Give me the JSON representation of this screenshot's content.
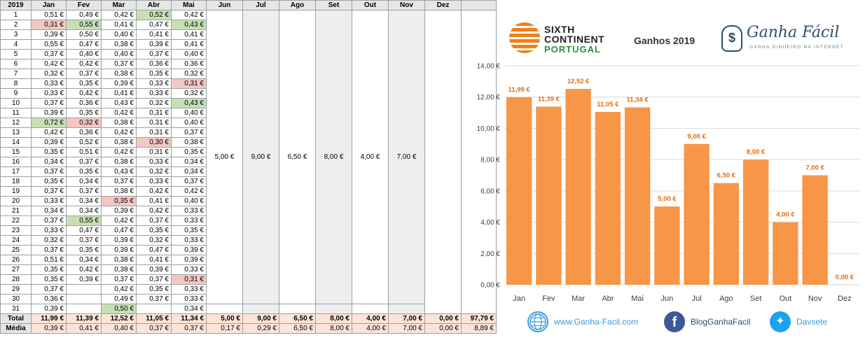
{
  "sheet": {
    "header": [
      "2019",
      "Jan",
      "Fev",
      "Mar",
      "Abr",
      "Mai",
      "Jun",
      "Jul",
      "Ago",
      "Set",
      "Out",
      "Nov",
      "Dez"
    ],
    "days": [
      {
        "day": "1",
        "vals": [
          "0,51 €",
          "0,49 €",
          "0,42 €",
          "0,52 €",
          "0,42 €"
        ],
        "hl": [
          "",
          "",
          "",
          "g",
          ""
        ]
      },
      {
        "day": "2",
        "vals": [
          "0,31 €",
          "0,55 €",
          "0,41 €",
          "0,47 €",
          "0,43 €"
        ],
        "hl": [
          "r",
          "g",
          "",
          "",
          "g"
        ]
      },
      {
        "day": "3",
        "vals": [
          "0,39 €",
          "0,50 €",
          "0,40 €",
          "0,41 €",
          "0,41 €"
        ],
        "hl": [
          "",
          "",
          "",
          "",
          ""
        ]
      },
      {
        "day": "4",
        "vals": [
          "0,55 €",
          "0,47 €",
          "0,38 €",
          "0,39 €",
          "0,41 €"
        ],
        "hl": [
          "",
          "",
          "",
          "",
          ""
        ]
      },
      {
        "day": "5",
        "vals": [
          "0,37 €",
          "0,40 €",
          "0,40 €",
          "0,37 €",
          "0,40 €"
        ],
        "hl": [
          "",
          "",
          "",
          "",
          ""
        ]
      },
      {
        "day": "6",
        "vals": [
          "0,42 €",
          "0,42 €",
          "0,37 €",
          "0,36 €",
          "0,36 €"
        ],
        "hl": [
          "",
          "",
          "",
          "",
          ""
        ]
      },
      {
        "day": "7",
        "vals": [
          "0,32 €",
          "0,37 €",
          "0,38 €",
          "0,35 €",
          "0,32 €"
        ],
        "hl": [
          "",
          "",
          "",
          "",
          ""
        ]
      },
      {
        "day": "8",
        "vals": [
          "0,33 €",
          "0,35 €",
          "0,39 €",
          "0,33 €",
          "0,31 €"
        ],
        "hl": [
          "",
          "",
          "",
          "",
          "r"
        ]
      },
      {
        "day": "9",
        "vals": [
          "0,33 €",
          "0,42 €",
          "0,41 €",
          "0,33 €",
          "0,32 €"
        ],
        "hl": [
          "",
          "",
          "",
          "",
          ""
        ]
      },
      {
        "day": "10",
        "vals": [
          "0,37 €",
          "0,36 €",
          "0,43 €",
          "0,32 €",
          "0,43 €"
        ],
        "hl": [
          "",
          "",
          "",
          "",
          "g"
        ]
      },
      {
        "day": "11",
        "vals": [
          "0,39 €",
          "0,35 €",
          "0,42 €",
          "0,31 €",
          "0,40 €"
        ],
        "hl": [
          "",
          "",
          "",
          "",
          ""
        ]
      },
      {
        "day": "12",
        "vals": [
          "0,72 €",
          "0,32 €",
          "0,38 €",
          "0,31 €",
          "0,40 €"
        ],
        "hl": [
          "g",
          "r",
          "",
          "",
          ""
        ]
      },
      {
        "day": "13",
        "vals": [
          "0,42 €",
          "0,36 €",
          "0,42 €",
          "0,31 €",
          "0,37 €"
        ],
        "hl": [
          "",
          "",
          "",
          "",
          ""
        ]
      },
      {
        "day": "14",
        "vals": [
          "0,39 €",
          "0,52 €",
          "0,38 €",
          "0,30 €",
          "0,38 €"
        ],
        "hl": [
          "",
          "",
          "",
          "r",
          ""
        ]
      },
      {
        "day": "15",
        "vals": [
          "0,35 €",
          "0,51 €",
          "0,42 €",
          "0,31 €",
          "0,35 €"
        ],
        "hl": [
          "",
          "",
          "",
          "",
          ""
        ]
      },
      {
        "day": "16",
        "vals": [
          "0,34 €",
          "0,37 €",
          "0,38 €",
          "0,33 €",
          "0,34 €"
        ],
        "hl": [
          "",
          "",
          "",
          "",
          ""
        ]
      },
      {
        "day": "17",
        "vals": [
          "0,37 €",
          "0,35 €",
          "0,43 €",
          "0,32 €",
          "0,34 €"
        ],
        "hl": [
          "",
          "",
          "",
          "",
          ""
        ]
      },
      {
        "day": "18",
        "vals": [
          "0,35 €",
          "0,34 €",
          "0,37 €",
          "0,33 €",
          "0,37 €"
        ],
        "hl": [
          "",
          "",
          "",
          "",
          ""
        ]
      },
      {
        "day": "19",
        "vals": [
          "0,37 €",
          "0,37 €",
          "0,38 €",
          "0,42 €",
          "0,42 €"
        ],
        "hl": [
          "",
          "",
          "",
          "",
          ""
        ]
      },
      {
        "day": "20",
        "vals": [
          "0,33 €",
          "0,34 €",
          "0,35 €",
          "0,41 €",
          "0,40 €"
        ],
        "hl": [
          "",
          "",
          "r",
          "",
          ""
        ]
      },
      {
        "day": "21",
        "vals": [
          "0,34 €",
          "0,34 €",
          "0,39 €",
          "0,42 €",
          "0,33 €"
        ],
        "hl": [
          "",
          "",
          "",
          "",
          ""
        ]
      },
      {
        "day": "22",
        "vals": [
          "0,37 €",
          "0,55 €",
          "0,42 €",
          "0,37 €",
          "0,33 €"
        ],
        "hl": [
          "",
          "g",
          "",
          "",
          ""
        ]
      },
      {
        "day": "23",
        "vals": [
          "0,33 €",
          "0,47 €",
          "0,47 €",
          "0,35 €",
          "0,35 €"
        ],
        "hl": [
          "",
          "",
          "",
          "",
          ""
        ]
      },
      {
        "day": "24",
        "vals": [
          "0,32 €",
          "0,37 €",
          "0,39 €",
          "0,32 €",
          "0,33 €"
        ],
        "hl": [
          "",
          "",
          "",
          "",
          ""
        ]
      },
      {
        "day": "25",
        "vals": [
          "0,37 €",
          "0,35 €",
          "0,39 €",
          "0,47 €",
          "0,39 €"
        ],
        "hl": [
          "",
          "",
          "",
          "",
          ""
        ]
      },
      {
        "day": "26",
        "vals": [
          "0,51 €",
          "0,34 €",
          "0,38 €",
          "0,41 €",
          "0,39 €"
        ],
        "hl": [
          "",
          "",
          "",
          "",
          ""
        ]
      },
      {
        "day": "27",
        "vals": [
          "0,35 €",
          "0,42 €",
          "0,38 €",
          "0,39 €",
          "0,33 €"
        ],
        "hl": [
          "",
          "",
          "",
          "",
          ""
        ]
      },
      {
        "day": "28",
        "vals": [
          "0,35 €",
          "0,39 €",
          "0,37 €",
          "0,37 €",
          "0,31 €"
        ],
        "hl": [
          "",
          "",
          "",
          "",
          "r"
        ]
      },
      {
        "day": "29",
        "vals": [
          "0,37 €",
          "",
          "0,42 €",
          "0,35 €",
          "0,33 €"
        ],
        "hl": [
          "",
          "",
          "",
          "",
          ""
        ]
      },
      {
        "day": "30",
        "vals": [
          "0,36 €",
          "",
          "0,49 €",
          "0,37 €",
          "0,33 €"
        ],
        "hl": [
          "",
          "",
          "",
          "",
          ""
        ]
      },
      {
        "day": "31",
        "vals": [
          "0,39 €",
          "",
          "0,50 €",
          "",
          "0,34 €"
        ],
        "hl": [
          "",
          "",
          "g",
          "",
          ""
        ]
      }
    ],
    "merged": {
      "Jun": "5,00 €",
      "Jul": "9,00 €",
      "Ago": "6,50 €",
      "Set": "8,00 €",
      "Out": "4,00 €",
      "Nov": "7,00 €"
    },
    "total": {
      "label": "Total",
      "vals": [
        "11,99 €",
        "11,39 €",
        "12,52 €",
        "11,05 €",
        "11,34 €",
        "5,00 €",
        "9,00 €",
        "6,50 €",
        "8,00 €",
        "4,00 €",
        "7,00 €",
        "0,00 €",
        "97,79 €"
      ]
    },
    "media": {
      "label": "Média",
      "vals": [
        "0,39 €",
        "0,41 €",
        "0,40 €",
        "0,37 €",
        "0,37 €",
        "0,17 €",
        "0,29 €",
        "6,50 €",
        "8,00 €",
        "4,00 €",
        "7,00 €",
        "0,00 €",
        "8,89 €"
      ]
    }
  },
  "chart_data": {
    "type": "bar",
    "title": "Ganhos 2019",
    "categories": [
      "Jan",
      "Fev",
      "Mar",
      "Abr",
      "Mai",
      "Jun",
      "Jul",
      "Ago",
      "Set",
      "Out",
      "Nov",
      "Dez"
    ],
    "values": [
      11.99,
      11.39,
      12.52,
      11.05,
      11.34,
      5.0,
      9.0,
      6.5,
      8.0,
      4.0,
      7.0,
      0.0
    ],
    "value_labels": [
      "11,99 €",
      "11,39 €",
      "12,52 €",
      "11,05 €",
      "11,34 €",
      "5,00 €",
      "9,00 €",
      "6,50 €",
      "8,00 €",
      "4,00 €",
      "7,00 €",
      "0,00 €"
    ],
    "yticks": [
      "0,00 €",
      "2,00 €",
      "4,00 €",
      "6,00 €",
      "8,00 €",
      "10,00 €",
      "12,00 €",
      "14,00 €"
    ],
    "ylim": [
      0,
      14
    ],
    "xlabel": "",
    "ylabel": "",
    "grid": true,
    "bar_color": "#f79646",
    "label_color": "#e46c0a"
  },
  "logos": {
    "sixth_line1": "SIXTH",
    "sixth_line2": "CONTINENT",
    "sixth_line3": "PORTUGAL",
    "gf_title": "Ganha Fácil",
    "gf_tagline": "GANHA DINHEIRO NA INTERNET",
    "gf_icon": "dollar-bulb-icon"
  },
  "footer": {
    "website": "www.Ganha-Facil.com",
    "facebook": "BlogGanhaFacil",
    "twitter": "Davsete",
    "icons": [
      "globe-icon",
      "facebook-icon",
      "twitter-icon"
    ]
  }
}
